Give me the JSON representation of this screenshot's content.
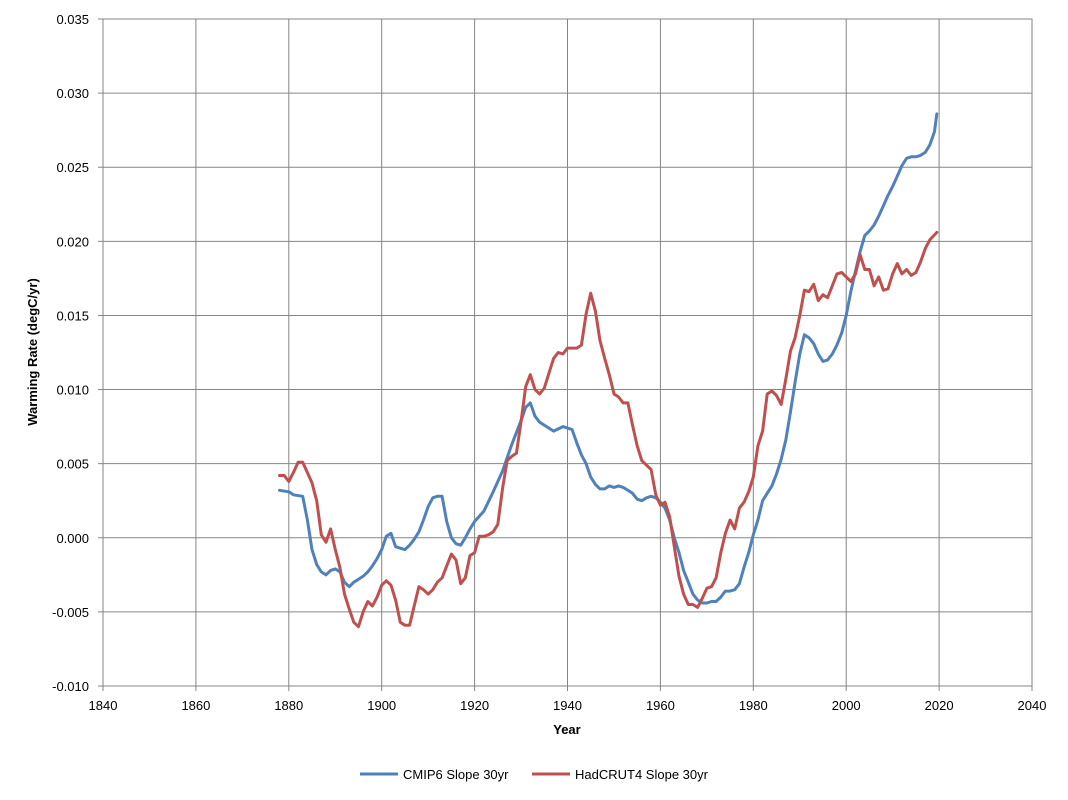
{
  "chart_data": {
    "type": "line",
    "title": "",
    "xlabel": "Year",
    "ylabel": "Warming Rate (degC/yr)",
    "xlim": [
      1840,
      2040
    ],
    "ylim": [
      -0.01,
      0.035
    ],
    "x_ticks": [
      1840,
      1860,
      1880,
      1900,
      1920,
      1940,
      1960,
      1980,
      2000,
      2020,
      2040
    ],
    "x_tick_labels": [
      "1840",
      "1860",
      "1880",
      "1900",
      "1920",
      "1940",
      "1960",
      "1980",
      "2000",
      "2020",
      "2040"
    ],
    "y_ticks": [
      -0.01,
      -0.005,
      0.0,
      0.005,
      0.01,
      0.015,
      0.02,
      0.025,
      0.03,
      0.035
    ],
    "y_tick_labels": [
      "-0.010",
      "-0.005",
      "0.000",
      "0.005",
      "0.010",
      "0.015",
      "0.020",
      "0.025",
      "0.030",
      "0.035"
    ],
    "grid": true,
    "legend_position": "bottom",
    "series": [
      {
        "name": "CMIP6 Slope 30yr",
        "color": "#4F81BD",
        "points": [
          [
            1878,
            0.0032
          ],
          [
            1880,
            0.0031
          ],
          [
            1881,
            0.0029
          ],
          [
            1883,
            0.0028
          ],
          [
            1884,
            0.0012
          ],
          [
            1885,
            -0.0008
          ],
          [
            1886,
            -0.0018
          ],
          [
            1887,
            -0.0023
          ],
          [
            1888,
            -0.0025
          ],
          [
            1889,
            -0.0022
          ],
          [
            1890,
            -0.0021
          ],
          [
            1891,
            -0.0023
          ],
          [
            1892,
            -0.003
          ],
          [
            1893,
            -0.0033
          ],
          [
            1894,
            -0.003
          ],
          [
            1895,
            -0.0028
          ],
          [
            1896,
            -0.0026
          ],
          [
            1897,
            -0.0023
          ],
          [
            1898,
            -0.0019
          ],
          [
            1899,
            -0.0014
          ],
          [
            1900,
            -0.0008
          ],
          [
            1901,
            0.0001
          ],
          [
            1902,
            0.0003
          ],
          [
            1903,
            -0.0006
          ],
          [
            1904,
            -0.0007
          ],
          [
            1905,
            -0.0008
          ],
          [
            1906,
            -0.0005
          ],
          [
            1907,
            -0.0001
          ],
          [
            1908,
            0.0004
          ],
          [
            1909,
            0.0012
          ],
          [
            1910,
            0.0021
          ],
          [
            1911,
            0.0027
          ],
          [
            1912,
            0.0028
          ],
          [
            1913,
            0.0028
          ],
          [
            1914,
            0.0011
          ],
          [
            1915,
            0.0
          ],
          [
            1916,
            -0.0004
          ],
          [
            1917,
            -0.0005
          ],
          [
            1918,
            0.0
          ],
          [
            1919,
            0.0006
          ],
          [
            1920,
            0.0011
          ],
          [
            1922,
            0.0018
          ],
          [
            1924,
            0.0031
          ],
          [
            1926,
            0.0045
          ],
          [
            1928,
            0.0063
          ],
          [
            1930,
            0.0079
          ],
          [
            1931,
            0.0088
          ],
          [
            1932,
            0.0091
          ],
          [
            1933,
            0.0082
          ],
          [
            1934,
            0.0078
          ],
          [
            1936,
            0.0074
          ],
          [
            1937,
            0.0072
          ],
          [
            1939,
            0.0075
          ],
          [
            1941,
            0.0073
          ],
          [
            1942,
            0.0064
          ],
          [
            1943,
            0.0056
          ],
          [
            1944,
            0.005
          ],
          [
            1945,
            0.0041
          ],
          [
            1946,
            0.0036
          ],
          [
            1947,
            0.0033
          ],
          [
            1948,
            0.0033
          ],
          [
            1949,
            0.0035
          ],
          [
            1950,
            0.0034
          ],
          [
            1951,
            0.0035
          ],
          [
            1952,
            0.0034
          ],
          [
            1953,
            0.0032
          ],
          [
            1954,
            0.003
          ],
          [
            1955,
            0.0026
          ],
          [
            1956,
            0.0025
          ],
          [
            1957,
            0.0027
          ],
          [
            1958,
            0.0028
          ],
          [
            1959,
            0.0027
          ],
          [
            1960,
            0.0024
          ],
          [
            1961,
            0.002
          ],
          [
            1962,
            0.0012
          ],
          [
            1963,
            0.0
          ],
          [
            1964,
            -0.001
          ],
          [
            1965,
            -0.0022
          ],
          [
            1966,
            -0.003
          ],
          [
            1967,
            -0.0038
          ],
          [
            1968,
            -0.0042
          ],
          [
            1969,
            -0.0044
          ],
          [
            1970,
            -0.0044
          ],
          [
            1971,
            -0.0043
          ],
          [
            1972,
            -0.0043
          ],
          [
            1973,
            -0.004
          ],
          [
            1974,
            -0.0036
          ],
          [
            1975,
            -0.0036
          ],
          [
            1976,
            -0.0035
          ],
          [
            1977,
            -0.0031
          ],
          [
            1978,
            -0.002
          ],
          [
            1979,
            -0.001
          ],
          [
            1980,
            0.0002
          ],
          [
            1981,
            0.0012
          ],
          [
            1982,
            0.0025
          ],
          [
            1983,
            0.003
          ],
          [
            1984,
            0.0035
          ],
          [
            1985,
            0.0043
          ],
          [
            1986,
            0.0053
          ],
          [
            1987,
            0.0066
          ],
          [
            1988,
            0.0085
          ],
          [
            1989,
            0.0105
          ],
          [
            1990,
            0.0124
          ],
          [
            1991,
            0.0137
          ],
          [
            1992,
            0.0135
          ],
          [
            1993,
            0.0131
          ],
          [
            1994,
            0.0124
          ],
          [
            1995,
            0.0119
          ],
          [
            1996,
            0.012
          ],
          [
            1997,
            0.0124
          ],
          [
            1998,
            0.013
          ],
          [
            1999,
            0.0138
          ],
          [
            2000,
            0.015
          ],
          [
            2001,
            0.0166
          ],
          [
            2002,
            0.018
          ],
          [
            2003,
            0.0193
          ],
          [
            2004,
            0.0204
          ],
          [
            2005,
            0.0207
          ],
          [
            2006,
            0.0211
          ],
          [
            2007,
            0.0217
          ],
          [
            2008,
            0.0224
          ],
          [
            2009,
            0.0231
          ],
          [
            2010,
            0.0237
          ],
          [
            2011,
            0.0244
          ],
          [
            2012,
            0.0251
          ],
          [
            2013,
            0.0256
          ],
          [
            2014,
            0.0257
          ],
          [
            2015,
            0.0257
          ],
          [
            2016,
            0.0258
          ],
          [
            2017,
            0.026
          ],
          [
            2018,
            0.0265
          ],
          [
            2019,
            0.0274
          ],
          [
            2019.5,
            0.0286
          ]
        ]
      },
      {
        "name": "HadCRUT4 Slope 30yr",
        "color": "#C0504D",
        "points": [
          [
            1878,
            0.0042
          ],
          [
            1879,
            0.0042
          ],
          [
            1880,
            0.0038
          ],
          [
            1881,
            0.0044
          ],
          [
            1882,
            0.0051
          ],
          [
            1883,
            0.0051
          ],
          [
            1884,
            0.0044
          ],
          [
            1885,
            0.0037
          ],
          [
            1886,
            0.0025
          ],
          [
            1887,
            0.0002
          ],
          [
            1888,
            -0.0003
          ],
          [
            1889,
            0.0006
          ],
          [
            1890,
            -0.0008
          ],
          [
            1891,
            -0.002
          ],
          [
            1892,
            -0.0038
          ],
          [
            1893,
            -0.0048
          ],
          [
            1894,
            -0.0057
          ],
          [
            1895,
            -0.006
          ],
          [
            1896,
            -0.005
          ],
          [
            1897,
            -0.0043
          ],
          [
            1898,
            -0.0046
          ],
          [
            1899,
            -0.004
          ],
          [
            1900,
            -0.0032
          ],
          [
            1901,
            -0.0029
          ],
          [
            1902,
            -0.0032
          ],
          [
            1903,
            -0.0042
          ],
          [
            1904,
            -0.0057
          ],
          [
            1905,
            -0.0059
          ],
          [
            1906,
            -0.0059
          ],
          [
            1907,
            -0.0046
          ],
          [
            1908,
            -0.0033
          ],
          [
            1909,
            -0.0035
          ],
          [
            1910,
            -0.0038
          ],
          [
            1911,
            -0.0035
          ],
          [
            1912,
            -0.003
          ],
          [
            1913,
            -0.0027
          ],
          [
            1914,
            -0.0019
          ],
          [
            1915,
            -0.0011
          ],
          [
            1916,
            -0.0015
          ],
          [
            1917,
            -0.0031
          ],
          [
            1918,
            -0.0027
          ],
          [
            1919,
            -0.0012
          ],
          [
            1920,
            -0.001
          ],
          [
            1921,
            0.0001
          ],
          [
            1922,
            0.0001
          ],
          [
            1923,
            0.0002
          ],
          [
            1924,
            0.0004
          ],
          [
            1925,
            0.0009
          ],
          [
            1926,
            0.0033
          ],
          [
            1927,
            0.0052
          ],
          [
            1928,
            0.0055
          ],
          [
            1929,
            0.0057
          ],
          [
            1930,
            0.0078
          ],
          [
            1931,
            0.0102
          ],
          [
            1932,
            0.011
          ],
          [
            1933,
            0.01
          ],
          [
            1934,
            0.0097
          ],
          [
            1935,
            0.0101
          ],
          [
            1936,
            0.0111
          ],
          [
            1937,
            0.0121
          ],
          [
            1938,
            0.0125
          ],
          [
            1939,
            0.0124
          ],
          [
            1940,
            0.0128
          ],
          [
            1941,
            0.0128
          ],
          [
            1942,
            0.0128
          ],
          [
            1943,
            0.013
          ],
          [
            1944,
            0.0151
          ],
          [
            1945,
            0.0165
          ],
          [
            1946,
            0.0153
          ],
          [
            1947,
            0.0133
          ],
          [
            1948,
            0.0121
          ],
          [
            1949,
            0.011
          ],
          [
            1950,
            0.0097
          ],
          [
            1951,
            0.0095
          ],
          [
            1952,
            0.0091
          ],
          [
            1953,
            0.0091
          ],
          [
            1954,
            0.0076
          ],
          [
            1955,
            0.0062
          ],
          [
            1956,
            0.0052
          ],
          [
            1957,
            0.0049
          ],
          [
            1958,
            0.0046
          ],
          [
            1959,
            0.0029
          ],
          [
            1960,
            0.0022
          ],
          [
            1961,
            0.0024
          ],
          [
            1962,
            0.0014
          ],
          [
            1963,
            -0.0006
          ],
          [
            1964,
            -0.0026
          ],
          [
            1965,
            -0.0038
          ],
          [
            1966,
            -0.0045
          ],
          [
            1967,
            -0.0045
          ],
          [
            1968,
            -0.0047
          ],
          [
            1969,
            -0.0041
          ],
          [
            1970,
            -0.0034
          ],
          [
            1971,
            -0.0033
          ],
          [
            1972,
            -0.0027
          ],
          [
            1973,
            -0.001
          ],
          [
            1974,
            0.0003
          ],
          [
            1975,
            0.0012
          ],
          [
            1976,
            0.0006
          ],
          [
            1977,
            0.002
          ],
          [
            1978,
            0.0024
          ],
          [
            1979,
            0.0031
          ],
          [
            1980,
            0.0041
          ],
          [
            1981,
            0.0062
          ],
          [
            1982,
            0.0072
          ],
          [
            1983,
            0.0097
          ],
          [
            1984,
            0.0099
          ],
          [
            1985,
            0.0096
          ],
          [
            1986,
            0.009
          ],
          [
            1987,
            0.0107
          ],
          [
            1988,
            0.0126
          ],
          [
            1989,
            0.0135
          ],
          [
            1990,
            0.015
          ],
          [
            1991,
            0.0167
          ],
          [
            1992,
            0.0166
          ],
          [
            1993,
            0.0171
          ],
          [
            1994,
            0.016
          ],
          [
            1995,
            0.0164
          ],
          [
            1996,
            0.0162
          ],
          [
            1997,
            0.017
          ],
          [
            1998,
            0.0178
          ],
          [
            1999,
            0.0179
          ],
          [
            2000,
            0.0176
          ],
          [
            2001,
            0.0173
          ],
          [
            2002,
            0.0178
          ],
          [
            2003,
            0.0191
          ],
          [
            2004,
            0.0181
          ],
          [
            2005,
            0.0181
          ],
          [
            2006,
            0.017
          ],
          [
            2007,
            0.0176
          ],
          [
            2008,
            0.0167
          ],
          [
            2009,
            0.0168
          ],
          [
            2010,
            0.0178
          ],
          [
            2011,
            0.0185
          ],
          [
            2012,
            0.0178
          ],
          [
            2013,
            0.0181
          ],
          [
            2014,
            0.0177
          ],
          [
            2015,
            0.0179
          ],
          [
            2016,
            0.0186
          ],
          [
            2017,
            0.0195
          ],
          [
            2018,
            0.0201
          ],
          [
            2019.5,
            0.0206
          ]
        ]
      }
    ]
  }
}
